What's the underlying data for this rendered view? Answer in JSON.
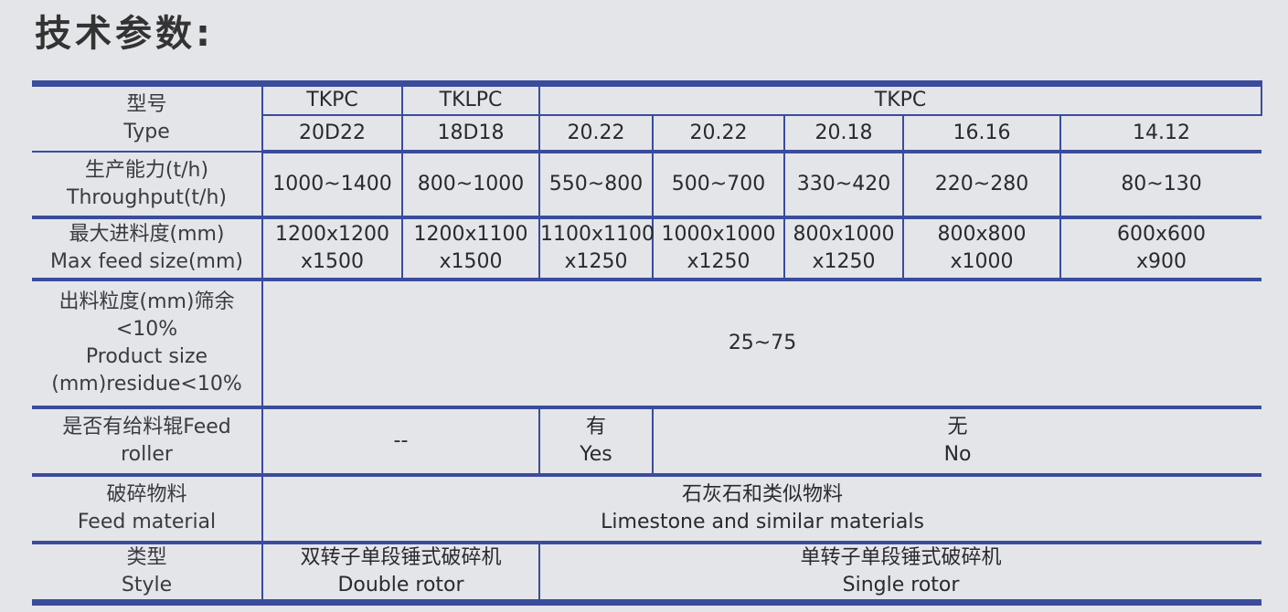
{
  "title": "技术参数:",
  "table": {
    "type_label": {
      "cn": "型号",
      "en": "Type"
    },
    "series": [
      "TKPC",
      "TKLPC",
      "TKPC",
      ""
    ],
    "models": [
      "20D22",
      "18D18",
      "20.22",
      "20.22",
      "20.18",
      "16.16",
      "14.12"
    ],
    "throughput": {
      "cn": "生产能力(t/h)",
      "en": "Throughput(t/h)",
      "values": [
        "1000~1400",
        "800~1000",
        "550~800",
        "500~700",
        "330~420",
        "220~280",
        "80~130"
      ]
    },
    "max_feed": {
      "cn": "最大进料度(mm)",
      "en": "Max feed size(mm)",
      "values": [
        [
          "1200x1200",
          "x1500"
        ],
        [
          "1200x1100",
          "x1500"
        ],
        [
          "1100x1100",
          "x1250"
        ],
        [
          "1000x1000",
          "x1250"
        ],
        [
          "800x1000",
          "x1250"
        ],
        [
          "800x800",
          "x1000"
        ],
        [
          "600x600",
          "x900"
        ]
      ]
    },
    "product_size": {
      "label": [
        "出料粒度(mm)筛余",
        "<10%",
        "Product size",
        "(mm)residue<10%"
      ],
      "value": "25~75"
    },
    "feed_roller": {
      "label": [
        "是否有给料辊Feed",
        "roller"
      ],
      "none": "--",
      "yes": [
        "有",
        "Yes"
      ],
      "no": [
        "无",
        "No"
      ]
    },
    "feed_material": {
      "cn": "破碎物料",
      "en": "Feed material",
      "value_cn": "石灰石和类似物料",
      "value_en": "Limestone and similar materials"
    },
    "style": {
      "cn": "类型",
      "en": "Style",
      "double_cn": "双转子单段锤式破碎机",
      "double_en": "Double rotor",
      "single_cn": "单转子单段锤式破碎机",
      "single_en": "Single rotor"
    }
  }
}
